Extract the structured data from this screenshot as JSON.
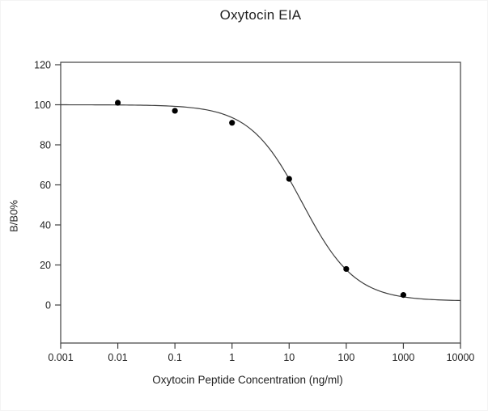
{
  "chart_data": {
    "type": "scatter",
    "title": "Oxytocin EIA",
    "xlabel": "Oxytocin Peptide Concentration (ng/ml)",
    "ylabel": "B/B0%",
    "x_scale": "log10",
    "xlim": [
      0.001,
      10000
    ],
    "ylim": [
      -20,
      120
    ],
    "x_tick_labels": [
      "0.001",
      "0.01",
      "0.1",
      "1",
      "10",
      "100",
      "1000",
      "10000"
    ],
    "x_tick_values": [
      0.001,
      0.01,
      0.1,
      1,
      10,
      100,
      1000,
      10000
    ],
    "y_tick_values": [
      0,
      20,
      40,
      60,
      80,
      100,
      120
    ],
    "grid": false,
    "legend": "none",
    "series": [
      {
        "name": "standard-curve-points",
        "points": [
          {
            "x": 0.01,
            "y": 101
          },
          {
            "x": 0.1,
            "y": 97
          },
          {
            "x": 1,
            "y": 91
          },
          {
            "x": 10,
            "y": 63
          },
          {
            "x": 100,
            "y": 18
          },
          {
            "x": 1000,
            "y": 5
          }
        ]
      }
    ],
    "fit_curve": {
      "model": "4PL",
      "top": 100,
      "bottom": 2,
      "ec50": 17,
      "hill": 0.94
    },
    "style": {
      "marker_shape": "filled-circle",
      "marker_color": "#000000",
      "marker_radius": 3.6,
      "curve_color": "#3c3c3c",
      "axis_color": "#3f3f3f",
      "text_color": "#222222",
      "background": "#ffffff"
    }
  }
}
